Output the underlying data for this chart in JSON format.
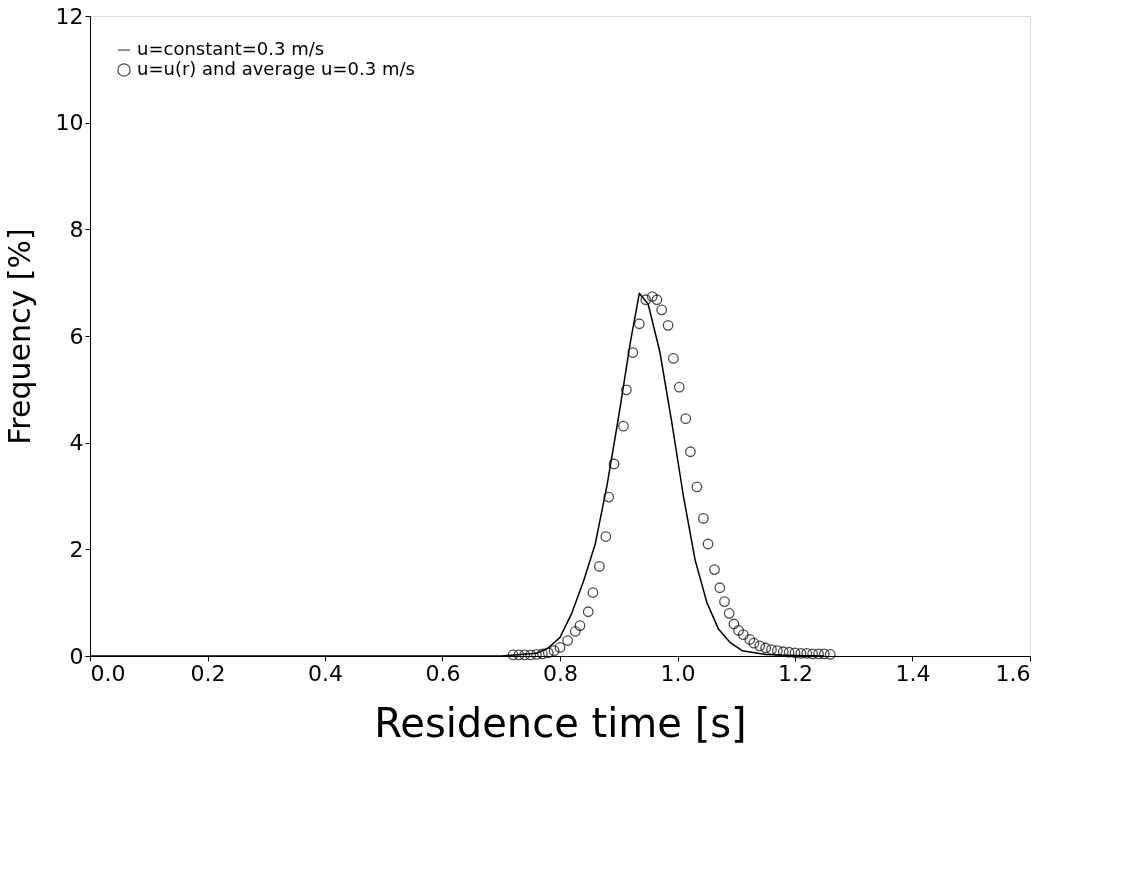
{
  "chart_data": {
    "type": "line",
    "xlabel": "Residence time [s]",
    "ylabel": "Frequency [%]",
    "xlim": [
      0,
      1.6
    ],
    "ylim": [
      0,
      12
    ],
    "xticks": [
      {
        "value": 0,
        "label": "0.0"
      },
      0.2,
      0.4,
      0.6,
      0.8,
      {
        "value": 1,
        "label": "1.0"
      },
      1.2,
      1.4,
      1.6
    ],
    "yticks": [
      0,
      2,
      4,
      6,
      8,
      10,
      12
    ],
    "grid": false,
    "legend": "top left",
    "series": [
      {
        "name": "u=constant=0.3 m/s",
        "color": "#000000",
        "marker": "none",
        "line_style": "solid",
        "x": [
          0,
          0.7,
          0.76,
          0.78,
          0.8,
          0.82,
          0.84,
          0.86,
          0.88,
          0.9,
          0.92,
          0.935,
          0.95,
          0.97,
          0.99,
          1.01,
          1.03,
          1.05,
          1.07,
          1.09,
          1.11,
          1.15,
          1.2,
          1.25
        ],
        "values": [
          0,
          0,
          0.05,
          0.15,
          0.35,
          0.8,
          1.4,
          2.1,
          3.2,
          4.5,
          5.9,
          6.8,
          6.6,
          5.7,
          4.4,
          3.0,
          1.8,
          1.0,
          0.5,
          0.25,
          0.1,
          0.03,
          0.01,
          0
        ]
      },
      {
        "name": "u=u(r) and average u=0.3 m/s",
        "type": "scatter",
        "color": "#000000",
        "marker": "circle",
        "x": [
          0.72,
          0.73,
          0.74,
          0.75,
          0.76,
          0.77,
          0.78,
          0.79,
          0.8,
          0.813,
          0.826,
          0.834,
          0.848,
          0.856,
          0.867,
          0.878,
          0.883,
          0.892,
          0.908,
          0.913,
          0.924,
          0.935,
          0.946,
          0.957,
          0.965,
          0.973,
          0.984,
          0.993,
          1.003,
          1.014,
          1.022,
          1.033,
          1.044,
          1.052,
          1.063,
          1.072,
          1.08,
          1.088,
          1.096,
          1.104,
          1.112,
          1.123,
          1.13,
          1.14,
          1.15,
          1.16,
          1.17,
          1.18,
          1.19,
          1.2,
          1.21,
          1.22,
          1.23,
          1.24,
          1.25,
          1.26
        ],
        "values": [
          0.02,
          0.02,
          0.02,
          0.02,
          0.03,
          0.04,
          0.06,
          0.1,
          0.16,
          0.29,
          0.46,
          0.57,
          0.83,
          1.19,
          1.68,
          2.24,
          2.98,
          3.6,
          4.31,
          4.99,
          5.69,
          6.23,
          6.68,
          6.74,
          6.68,
          6.49,
          6.2,
          5.58,
          5.04,
          4.45,
          3.83,
          3.17,
          2.58,
          2.1,
          1.62,
          1.28,
          1.02,
          0.8,
          0.6,
          0.48,
          0.4,
          0.31,
          0.24,
          0.19,
          0.15,
          0.12,
          0.1,
          0.08,
          0.07,
          0.06,
          0.05,
          0.05,
          0.04,
          0.04,
          0.04,
          0.03
        ]
      }
    ]
  }
}
